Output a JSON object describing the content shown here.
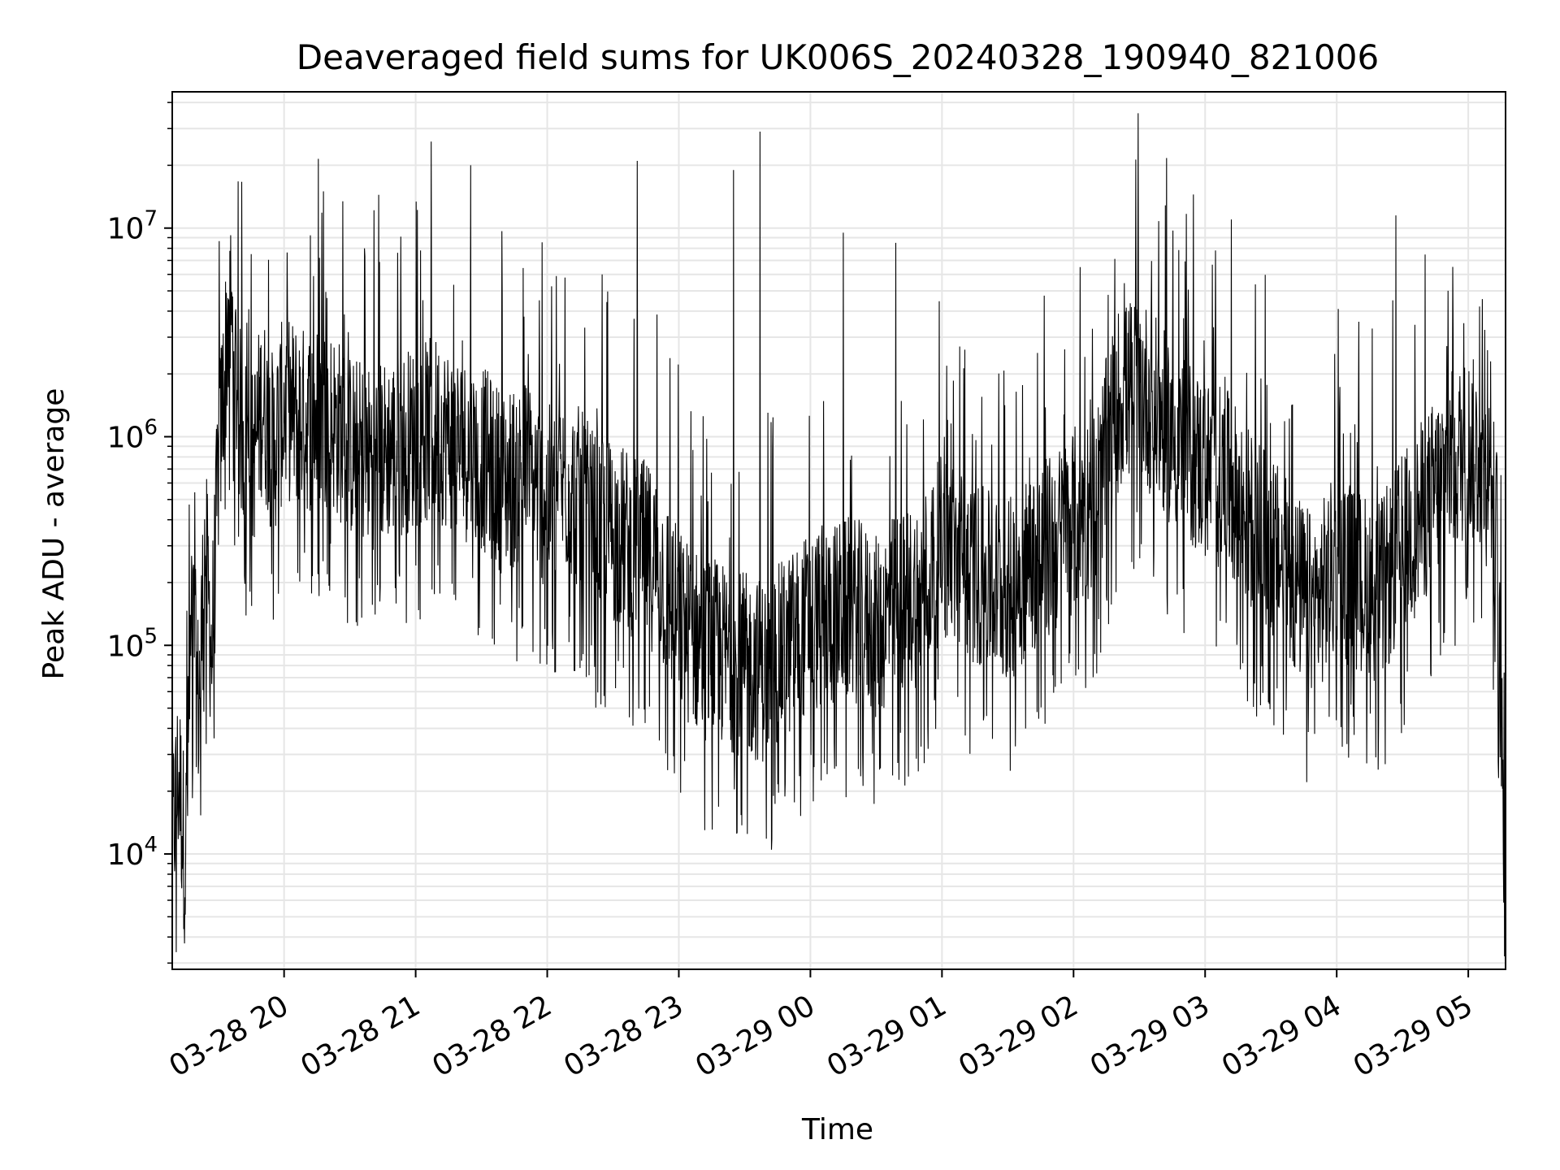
{
  "chart_data": {
    "type": "line",
    "title": "Deaveraged field sums for UK006S_20240328_190940_821006",
    "xlabel": "Time",
    "ylabel": "Peak ADU - average",
    "y_scale": "log",
    "ylim": [
      2800,
      45000000
    ],
    "xlim": [
      "2024-03-28 19:09",
      "2024-03-29 05:17"
    ],
    "x_ticks": [
      {
        "value": "2024-03-28 20:00",
        "label": "03-28 20"
      },
      {
        "value": "2024-03-28 21:00",
        "label": "03-28 21"
      },
      {
        "value": "2024-03-28 22:00",
        "label": "03-28 22"
      },
      {
        "value": "2024-03-28 23:00",
        "label": "03-28 23"
      },
      {
        "value": "2024-03-29 00:00",
        "label": "03-29 00"
      },
      {
        "value": "2024-03-29 01:00",
        "label": "03-29 01"
      },
      {
        "value": "2024-03-29 02:00",
        "label": "03-29 02"
      },
      {
        "value": "2024-03-29 03:00",
        "label": "03-29 03"
      },
      {
        "value": "2024-03-29 04:00",
        "label": "03-29 04"
      },
      {
        "value": "2024-03-29 05:00",
        "label": "03-29 05"
      }
    ],
    "y_ticks": [
      {
        "value": 10000,
        "base": "10",
        "exp": "4"
      },
      {
        "value": 100000,
        "base": "10",
        "exp": "5"
      },
      {
        "value": 1000000,
        "base": "10",
        "exp": "6"
      },
      {
        "value": 10000000,
        "base": "10",
        "exp": "7"
      }
    ],
    "grid": true,
    "grid_minor": true,
    "legend": "none",
    "colors": {
      "line": "#000000",
      "grid": "#e6e6e6",
      "axes": "#000000",
      "background": "#ffffff"
    },
    "series": [
      {
        "x": [
          "2024-03-28 19:09",
          "2024-03-28 19:12",
          "2024-03-28 19:15",
          "2024-03-28 19:18",
          "2024-03-28 19:21",
          "2024-03-28 19:24",
          "2024-03-28 19:27",
          "2024-03-28 19:30",
          "2024-03-28 19:35",
          "2024-03-28 19:40",
          "2024-03-28 19:45",
          "2024-03-28 19:50",
          "2024-03-28 19:55",
          "2024-03-28 20:00",
          "2024-03-28 20:10",
          "2024-03-28 20:20",
          "2024-03-28 20:30",
          "2024-03-28 20:40",
          "2024-03-28 20:50",
          "2024-03-28 21:00",
          "2024-03-28 21:10",
          "2024-03-28 21:20",
          "2024-03-28 21:30",
          "2024-03-28 21:40",
          "2024-03-28 21:50",
          "2024-03-28 22:00",
          "2024-03-28 22:10",
          "2024-03-28 22:20",
          "2024-03-28 22:30",
          "2024-03-28 22:40",
          "2024-03-28 22:50",
          "2024-03-28 23:00",
          "2024-03-28 23:10",
          "2024-03-28 23:20",
          "2024-03-28 23:30",
          "2024-03-28 23:40",
          "2024-03-28 23:50",
          "2024-03-29 00:00",
          "2024-03-29 00:10",
          "2024-03-29 00:20",
          "2024-03-29 00:30",
          "2024-03-29 00:40",
          "2024-03-29 00:50",
          "2024-03-29 01:00",
          "2024-03-29 01:10",
          "2024-03-29 01:20",
          "2024-03-29 01:30",
          "2024-03-29 01:40",
          "2024-03-29 01:50",
          "2024-03-29 02:00",
          "2024-03-29 02:10",
          "2024-03-29 02:20",
          "2024-03-29 02:30",
          "2024-03-29 02:40",
          "2024-03-29 02:50",
          "2024-03-29 03:00",
          "2024-03-29 03:10",
          "2024-03-29 03:20",
          "2024-03-29 03:30",
          "2024-03-29 03:40",
          "2024-03-29 03:50",
          "2024-03-29 04:00",
          "2024-03-29 04:10",
          "2024-03-29 04:20",
          "2024-03-29 04:30",
          "2024-03-29 04:40",
          "2024-03-29 04:50",
          "2024-03-29 05:00",
          "2024-03-29 05:05",
          "2024-03-29 05:10",
          "2024-03-29 05:13",
          "2024-03-29 05:15",
          "2024-03-29 05:17"
        ],
        "y": [
          12000,
          25000,
          9000,
          150000,
          50000,
          300000,
          90000,
          700000,
          4500000,
          1200000,
          700000,
          1500000,
          900000,
          1400000,
          1200000,
          1300000,
          900000,
          800000,
          900000,
          1000000,
          1100000,
          900000,
          800000,
          600000,
          700000,
          500000,
          600000,
          400000,
          350000,
          300000,
          250000,
          130000,
          100000,
          90000,
          80000,
          75000,
          100000,
          130000,
          140000,
          150000,
          120000,
          160000,
          180000,
          300000,
          250000,
          200000,
          180000,
          250000,
          300000,
          400000,
          500000,
          1500000,
          1800000,
          1200000,
          900000,
          700000,
          600000,
          400000,
          300000,
          200000,
          150000,
          250000,
          200000,
          180000,
          300000,
          450000,
          700000,
          900000,
          800000,
          600000,
          350000,
          40000,
          4500
        ],
        "peaks": [
          {
            "x": "2024-03-28 19:45",
            "y": 7500000
          },
          {
            "x": "2024-03-28 20:18",
            "y": 15000000
          },
          {
            "x": "2024-03-28 21:07",
            "y": 26000000
          },
          {
            "x": "2024-03-28 21:25",
            "y": 20000000
          },
          {
            "x": "2024-03-28 22:25",
            "y": 6000000
          },
          {
            "x": "2024-03-28 22:41",
            "y": 21000000
          },
          {
            "x": "2024-03-28 23:25",
            "y": 19000000
          },
          {
            "x": "2024-03-28 23:37",
            "y": 29000000
          },
          {
            "x": "2024-03-29 00:15",
            "y": 9500000
          },
          {
            "x": "2024-03-29 00:39",
            "y": 8500000
          },
          {
            "x": "2024-03-29 02:03",
            "y": 6500000
          },
          {
            "x": "2024-03-29 03:12",
            "y": 11000000
          },
          {
            "x": "2024-03-29 04:27",
            "y": 11500000
          },
          {
            "x": "2024-03-29 04:58",
            "y": 3500000
          }
        ]
      }
    ]
  }
}
